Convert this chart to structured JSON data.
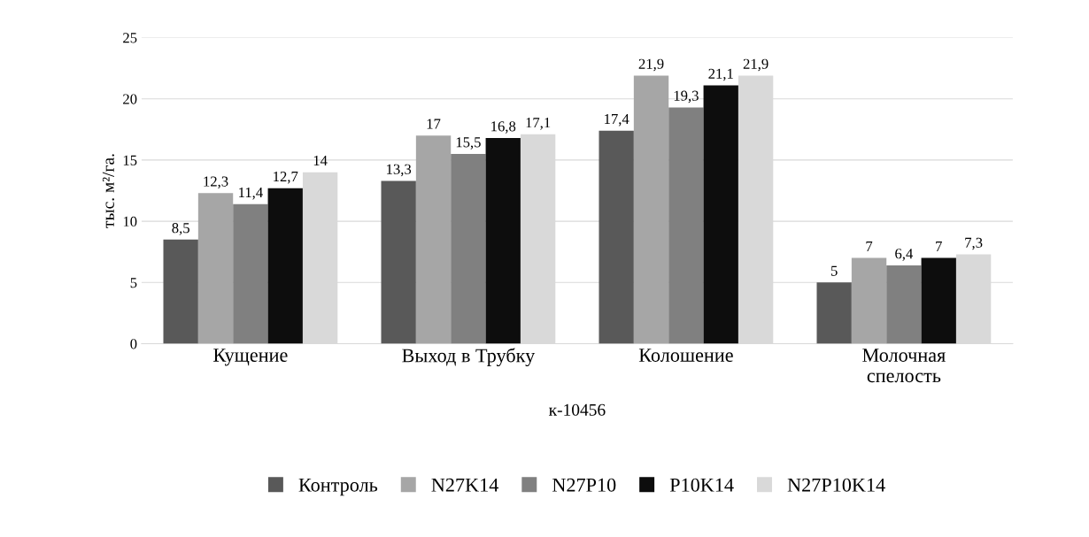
{
  "chart_data": {
    "type": "bar",
    "xlabel": "к-10456",
    "ylabel": "тыс. м²/га.",
    "categories": [
      "Кущение",
      "Выход в Трубку",
      "Колошение",
      "Молочная\nспелость"
    ],
    "series": [
      {
        "name": "Контроль",
        "color": "#595959",
        "values": [
          8.5,
          13.3,
          17.4,
          5
        ],
        "value_labels": [
          "8,5",
          "13,3",
          "17,4",
          "5"
        ]
      },
      {
        "name": "N27K14",
        "color": "#a6a6a6",
        "values": [
          12.3,
          17,
          21.9,
          7
        ],
        "value_labels": [
          "12,3",
          "17",
          "21,9",
          "7"
        ]
      },
      {
        "name": "N27P10",
        "color": "#808080",
        "values": [
          11.4,
          15.5,
          19.3,
          6.4
        ],
        "value_labels": [
          "11,4",
          "15,5",
          "19,3",
          "6,4"
        ]
      },
      {
        "name": "P10K14",
        "color": "#0d0d0d",
        "values": [
          12.7,
          16.8,
          21.1,
          7
        ],
        "value_labels": [
          "12,7",
          "16,8",
          "21,1",
          "7"
        ]
      },
      {
        "name": "N27P10K14",
        "color": "#d9d9d9",
        "values": [
          14,
          17.1,
          21.9,
          7.3
        ],
        "value_labels": [
          "14",
          "17,1",
          "21,9",
          "7,3"
        ]
      }
    ],
    "ylim": [
      0,
      25
    ],
    "yticks": [
      0,
      5,
      10,
      15,
      20,
      25
    ],
    "grid": "y",
    "legend": "bottom"
  }
}
